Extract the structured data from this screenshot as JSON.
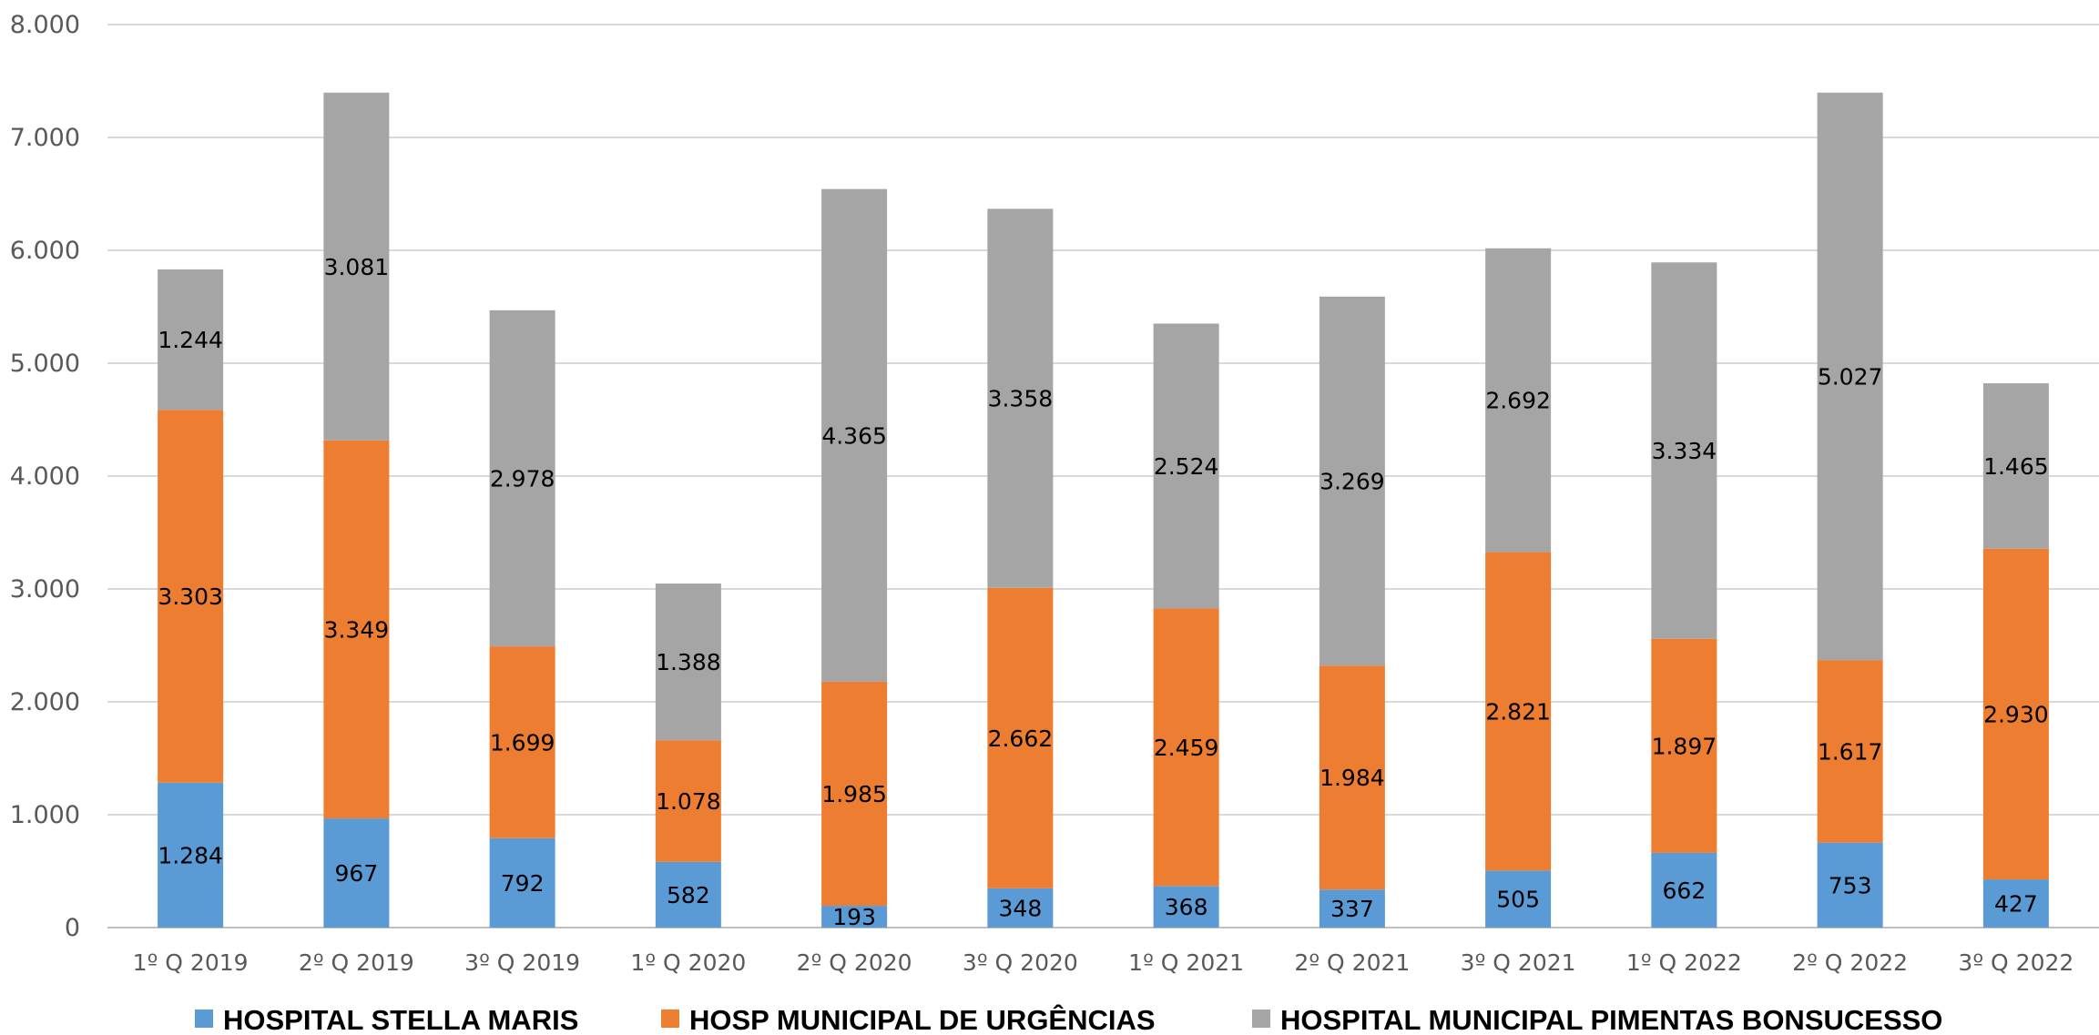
{
  "chart_data": {
    "type": "bar",
    "stacked": true,
    "title": "",
    "xlabel": "",
    "ylabel": "",
    "ylim": [
      0,
      8000
    ],
    "yticks": [
      0,
      1000,
      2000,
      3000,
      4000,
      5000,
      6000,
      7000,
      8000
    ],
    "ytick_labels": [
      "0",
      "1.000",
      "2.000",
      "3.000",
      "4.000",
      "5.000",
      "6.000",
      "7.000",
      "8.000"
    ],
    "grid": true,
    "legend_position": "bottom",
    "categories": [
      "1º Q 2019",
      "2º Q 2019",
      "3º Q 2019",
      "1º Q 2020",
      "2º Q 2020",
      "3º Q 2020",
      "1º Q 2021",
      "2º Q 2021",
      "3º Q 2021",
      "1º Q 2022",
      "2º Q 2022",
      "3º Q 2022"
    ],
    "series": [
      {
        "name": "HOSPITAL STELLA MARIS",
        "color": "#5B9BD5",
        "values": [
          1284,
          967,
          792,
          582,
          193,
          348,
          368,
          337,
          505,
          662,
          753,
          427
        ],
        "labels": [
          "1.284",
          "967",
          "792",
          "582",
          "193",
          "348",
          "368",
          "337",
          "505",
          "662",
          "753",
          "427"
        ]
      },
      {
        "name": "HOSP MUNICIPAL DE URGÊNCIAS",
        "color": "#ED7D31",
        "values": [
          3303,
          3349,
          1699,
          1078,
          1985,
          2662,
          2459,
          1984,
          2821,
          1897,
          1617,
          2930
        ],
        "labels": [
          "3.303",
          "3.349",
          "1.699",
          "1.078",
          "1.985",
          "2.662",
          "2.459",
          "1.984",
          "2.821",
          "1.897",
          "1.617",
          "2.930"
        ]
      },
      {
        "name": "HOSPITAL MUNICIPAL PIMENTAS BONSUCESSO",
        "color": "#A5A5A5",
        "values": [
          1244,
          3081,
          2978,
          1388,
          4365,
          3358,
          2524,
          3269,
          2692,
          3334,
          5027,
          1465
        ],
        "labels": [
          "1.244",
          "3.081",
          "2.978",
          "1.388",
          "4.365",
          "3.358",
          "2.524",
          "3.269",
          "2.692",
          "3.334",
          "5.027",
          "1.465"
        ]
      }
    ]
  }
}
